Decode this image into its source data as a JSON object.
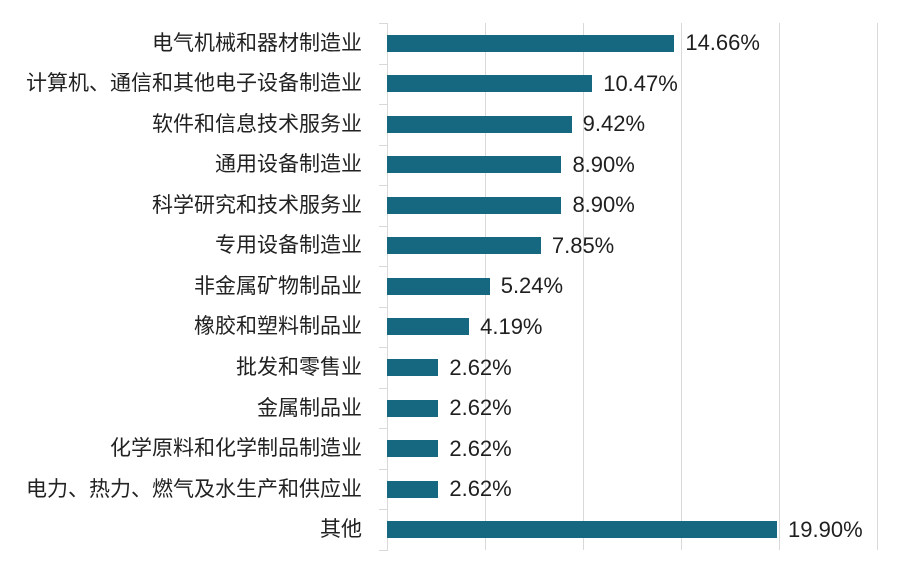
{
  "chart_data": {
    "type": "bar",
    "orientation": "horizontal",
    "title": "",
    "xlabel": "",
    "ylabel": "",
    "xlim": [
      0,
      25
    ],
    "gridline_interval": 5,
    "grid": true,
    "legend": false,
    "categories": [
      "电气机械和器材制造业",
      "计算机、通信和其他电子设备制造业",
      "软件和信息技术服务业",
      "通用设备制造业",
      "科学研究和技术服务业",
      "专用设备制造业",
      "非金属矿物制品业",
      "橡胶和塑料制品业",
      "批发和零售业",
      "金属制品业",
      "化学原料和化学制品制造业",
      "电力、热力、燃气及水生产和供应业",
      "其他"
    ],
    "values": [
      14.66,
      10.47,
      9.42,
      8.9,
      8.9,
      7.85,
      5.24,
      4.19,
      2.62,
      2.62,
      2.62,
      2.62,
      19.9
    ],
    "value_labels": [
      "14.66%",
      "10.47%",
      "9.42%",
      "8.90%",
      "8.90%",
      "7.85%",
      "5.24%",
      "4.19%",
      "2.62%",
      "2.62%",
      "2.62%",
      "2.62%",
      "19.90%"
    ],
    "colors": {
      "bar": "#156880",
      "gridline": "#D9D9D9",
      "axis": "#D9D9D9",
      "category_label": "#222222",
      "value_label": "#1f1f1f",
      "background": "#ffffff"
    }
  }
}
